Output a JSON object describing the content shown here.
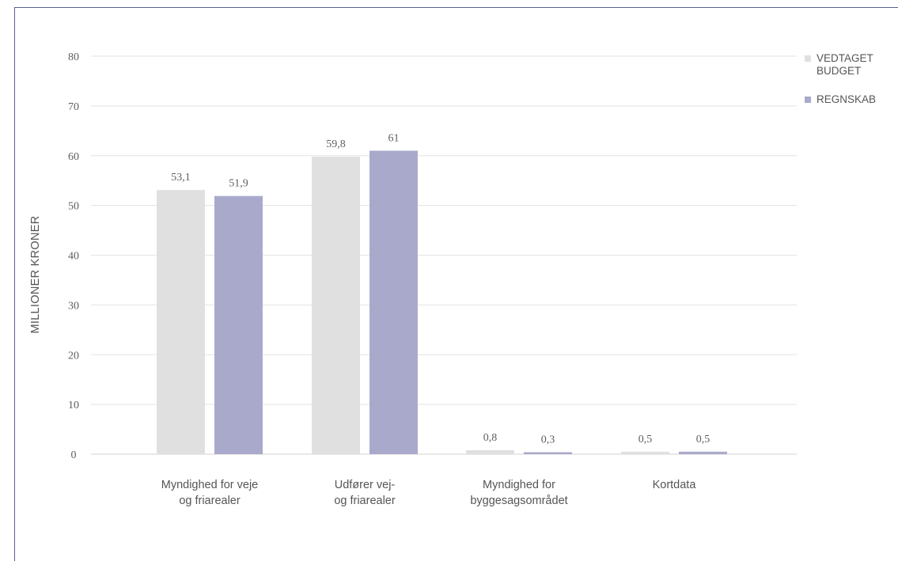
{
  "chart_data": {
    "type": "bar",
    "ylabel": "MILLIONER KRONER",
    "ylim": [
      0,
      80
    ],
    "yticks": [
      "0",
      "10",
      "20",
      "30",
      "40",
      "50",
      "60",
      "70",
      "80"
    ],
    "grid": true,
    "legend_position": "top-right",
    "categories": [
      [
        "Myndighed for veje",
        "og friarealer"
      ],
      [
        "Udfører vej-",
        "og friarealer"
      ],
      [
        "Myndighed for",
        "byggesagsområdet"
      ],
      [
        "Kortdata"
      ]
    ],
    "series": [
      {
        "name": "VEDTAGET BUDGET",
        "color": "#e0e0e0",
        "values": [
          53.1,
          59.8,
          0.8,
          0.5
        ],
        "labels": [
          "53,1",
          "59,8",
          "0,8",
          "0,5"
        ]
      },
      {
        "name": "REGNSKAB",
        "color": "#a9aacb",
        "values": [
          51.9,
          61,
          0.3,
          0.5
        ],
        "labels": [
          "51,9",
          "61",
          "0,3",
          "0,5"
        ]
      }
    ]
  }
}
